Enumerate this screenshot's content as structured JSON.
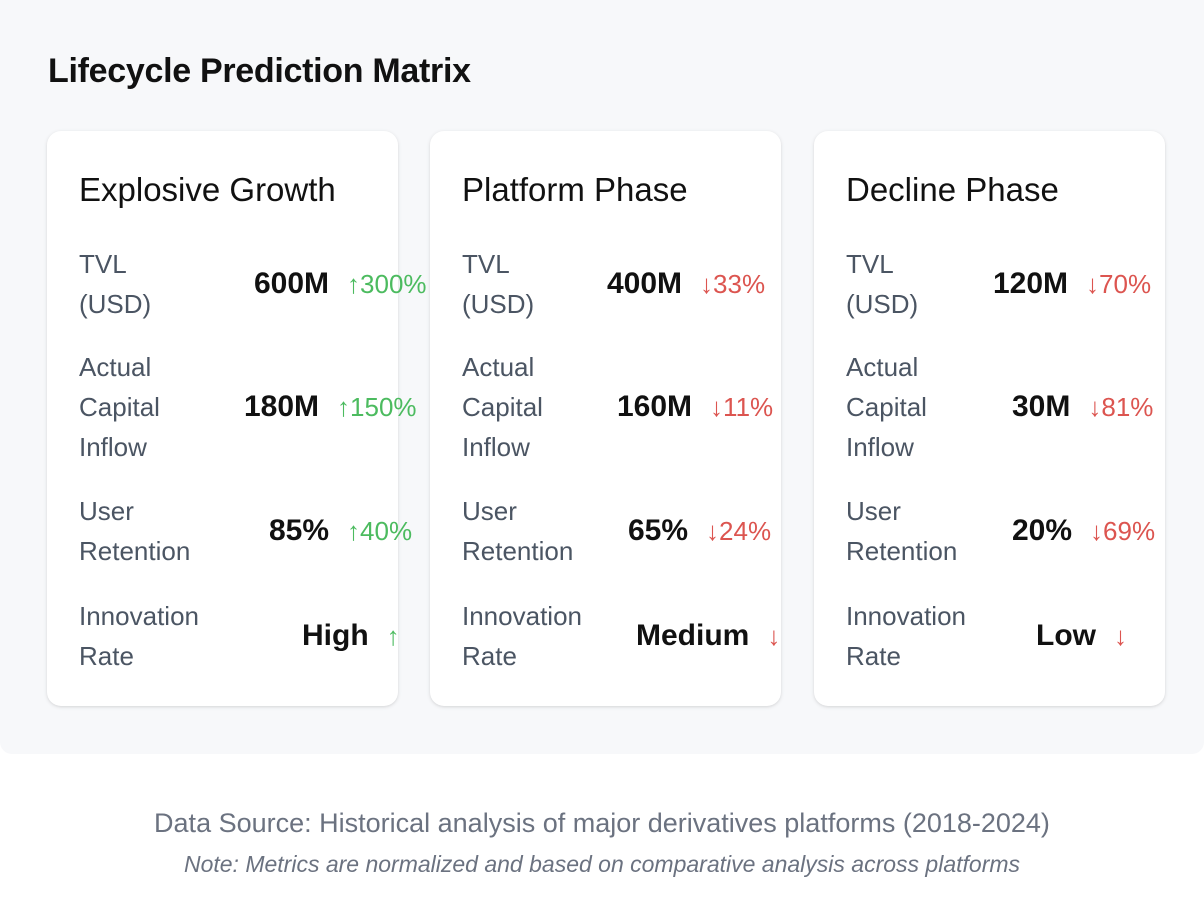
{
  "title": "Lifecycle Prediction Matrix",
  "colors": {
    "up": "#4cbb5f",
    "down": "#dc5550"
  },
  "cards": [
    {
      "title": "Explosive Growth",
      "metrics": [
        {
          "label_lines": [
            "TVL",
            "(USD)"
          ],
          "value": "600M",
          "change": "↑300%",
          "trend": "up"
        },
        {
          "label_lines": [
            "Actual",
            "Capital",
            "Inflow"
          ],
          "value": "180M",
          "change": "↑150%",
          "trend": "up"
        },
        {
          "label_lines": [
            "User",
            "Retention"
          ],
          "value": "85%",
          "change": "↑40%",
          "trend": "up"
        },
        {
          "label_lines": [
            "Innovation",
            "Rate"
          ],
          "value": "High",
          "change": "↑",
          "trend": "up"
        }
      ]
    },
    {
      "title": "Platform Phase",
      "metrics": [
        {
          "label_lines": [
            "TVL",
            "(USD)"
          ],
          "value": "400M",
          "change": "↓33%",
          "trend": "down"
        },
        {
          "label_lines": [
            "Actual",
            "Capital",
            "Inflow"
          ],
          "value": "160M",
          "change": "↓11%",
          "trend": "down"
        },
        {
          "label_lines": [
            "User",
            "Retention"
          ],
          "value": "65%",
          "change": "↓24%",
          "trend": "down"
        },
        {
          "label_lines": [
            "Innovation",
            "Rate"
          ],
          "value": "Medium",
          "change": "↓",
          "trend": "down"
        }
      ]
    },
    {
      "title": "Decline Phase",
      "metrics": [
        {
          "label_lines": [
            "TVL",
            "(USD)"
          ],
          "value": "120M",
          "change": "↓70%",
          "trend": "down"
        },
        {
          "label_lines": [
            "Actual",
            "Capital",
            "Inflow"
          ],
          "value": "30M",
          "change": "↓81%",
          "trend": "down"
        },
        {
          "label_lines": [
            "User",
            "Retention"
          ],
          "value": "20%",
          "change": "↓69%",
          "trend": "down"
        },
        {
          "label_lines": [
            "Innovation",
            "Rate"
          ],
          "value": "Low",
          "change": "↓",
          "trend": "down"
        }
      ]
    }
  ],
  "footer": {
    "source": "Data Source: Historical analysis of major derivatives platforms (2018-2024)",
    "note": "Note: Metrics are normalized and based on comparative analysis across platforms"
  }
}
